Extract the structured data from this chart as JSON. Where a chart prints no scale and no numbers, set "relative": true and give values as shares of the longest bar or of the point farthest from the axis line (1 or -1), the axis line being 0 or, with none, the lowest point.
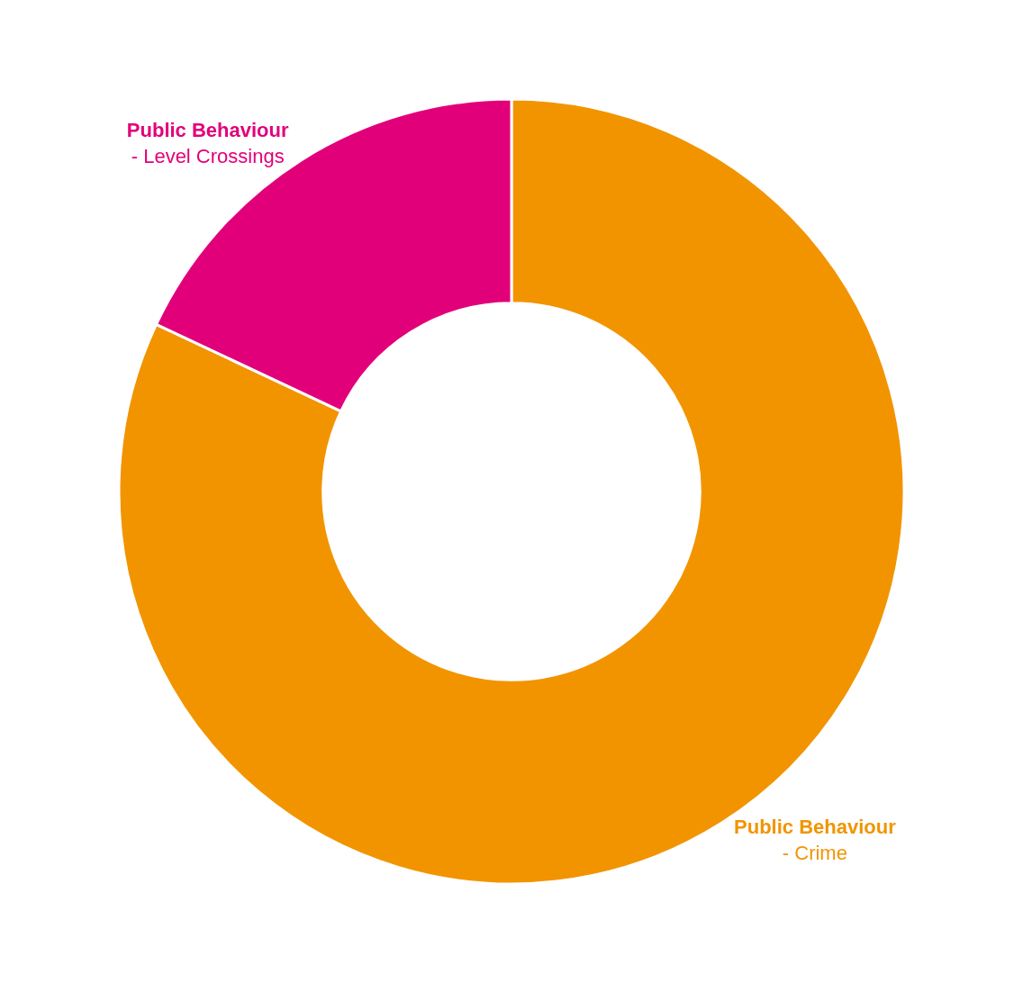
{
  "chart_data": {
    "type": "donut",
    "relative": true,
    "categories": [
      "Public Behaviour\n- Crime",
      "Public Behaviour\n- Level Crossings"
    ],
    "values": [
      82,
      18
    ],
    "colors": [
      "#f29400",
      "#e2007a"
    ],
    "legend": false
  }
}
